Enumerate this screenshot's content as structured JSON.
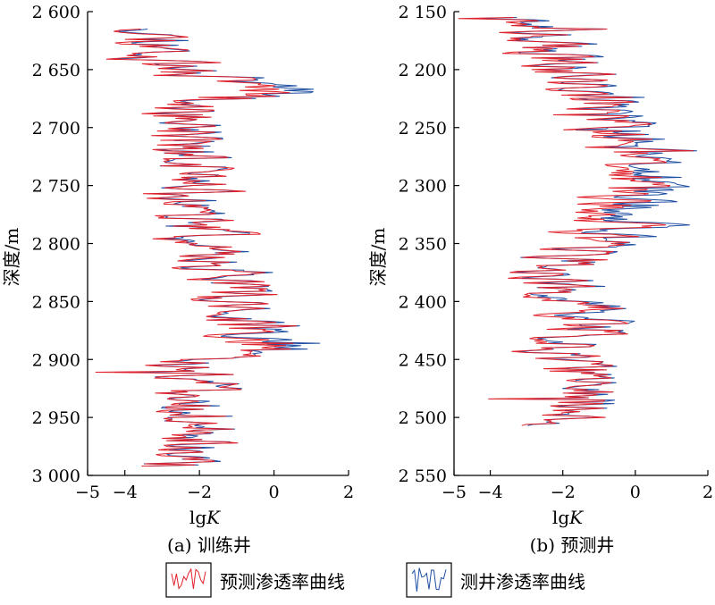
{
  "colors": {
    "predicted": "#e0202a",
    "measured": "#1f4fa3",
    "axis": "#000000"
  },
  "legend": {
    "predicted_label": "预测渗透率曲线",
    "measured_label": "测井渗透率曲线"
  },
  "chart_data": [
    {
      "type": "line",
      "caption": "(a) 训练井",
      "xlabel": "lgK",
      "ylabel": "深度/m",
      "xlim": [
        -5,
        2
      ],
      "ylim": [
        3000,
        2600
      ],
      "y_inverted": true,
      "xticks": [
        -5,
        -4,
        -2,
        0,
        2
      ],
      "yticks": [
        2600,
        2650,
        2700,
        2750,
        2800,
        2850,
        2900,
        2950,
        3000
      ],
      "ytick_labels": [
        "2 600",
        "2 650",
        "2 700",
        "2 750",
        "2 800",
        "2 850",
        "2 900",
        "2 950",
        "3 000"
      ],
      "depth_range": [
        2615,
        2992
      ],
      "series": [
        {
          "name": "预测渗透率曲线",
          "key": "predicted",
          "profile": [
            [
              2615,
              -3.0
            ],
            [
              2630,
              -2.9
            ],
            [
              2645,
              -3.2
            ],
            [
              2655,
              -2.2
            ],
            [
              2662,
              -0.5
            ],
            [
              2668,
              -0.3
            ],
            [
              2675,
              -1.0
            ],
            [
              2680,
              -2.5
            ],
            [
              2700,
              -2.2
            ],
            [
              2720,
              -2.5
            ],
            [
              2740,
              -2.0
            ],
            [
              2760,
              -2.2
            ],
            [
              2780,
              -2.4
            ],
            [
              2790,
              -1.8
            ],
            [
              2800,
              -2.5
            ],
            [
              2815,
              -1.5
            ],
            [
              2830,
              -1.2
            ],
            [
              2845,
              -1.0
            ],
            [
              2860,
              -1.5
            ],
            [
              2875,
              -0.5
            ],
            [
              2885,
              -0.3
            ],
            [
              2895,
              -1.0
            ],
            [
              2905,
              -2.2
            ],
            [
              2920,
              -2.0
            ],
            [
              2935,
              -2.5
            ],
            [
              2950,
              -2.0
            ],
            [
              2965,
              -1.8
            ],
            [
              2978,
              -2.0
            ],
            [
              2992,
              -3.0
            ]
          ]
        },
        {
          "name": "测井渗透率曲线",
          "key": "measured",
          "profile": [
            [
              2615,
              -2.8
            ],
            [
              2630,
              -2.8
            ],
            [
              2645,
              -3.1
            ],
            [
              2655,
              -2.0
            ],
            [
              2662,
              -0.2
            ],
            [
              2668,
              0.6
            ],
            [
              2675,
              -0.8
            ],
            [
              2680,
              -2.4
            ],
            [
              2700,
              -2.2
            ],
            [
              2720,
              -2.4
            ],
            [
              2740,
              -2.0
            ],
            [
              2760,
              -2.1
            ],
            [
              2780,
              -2.3
            ],
            [
              2790,
              -2.0
            ],
            [
              2800,
              -2.4
            ],
            [
              2815,
              -1.4
            ],
            [
              2830,
              -1.1
            ],
            [
              2845,
              -0.9
            ],
            [
              2860,
              -1.4
            ],
            [
              2875,
              -0.2
            ],
            [
              2885,
              0.4
            ],
            [
              2895,
              -0.8
            ],
            [
              2905,
              -2.1
            ],
            [
              2920,
              -2.0
            ],
            [
              2935,
              -2.4
            ],
            [
              2950,
              -2.0
            ],
            [
              2965,
              -1.7
            ],
            [
              2978,
              -1.8
            ],
            [
              2992,
              -2.9
            ]
          ]
        }
      ]
    },
    {
      "type": "line",
      "caption": "(b) 预测井",
      "xlabel": "lgK",
      "ylabel": "深度/m",
      "xlim": [
        -5,
        2
      ],
      "ylim": [
        2550,
        2150
      ],
      "y_inverted": true,
      "xticks": [
        -5,
        -4,
        -2,
        0,
        2
      ],
      "yticks": [
        2150,
        2200,
        2250,
        2300,
        2350,
        2400,
        2450,
        2500,
        2550
      ],
      "ytick_labels": [
        "2 150",
        "2 200",
        "2 250",
        "2 300",
        "2 350",
        "2 400",
        "2 450",
        "2 500",
        "2 550"
      ],
      "depth_range": [
        2155,
        2507
      ],
      "series": [
        {
          "name": "预测渗透率曲线",
          "key": "predicted",
          "profile": [
            [
              2155,
              -2.8
            ],
            [
              2170,
              -2.5
            ],
            [
              2185,
              -2.5
            ],
            [
              2200,
              -1.8
            ],
            [
              2215,
              -1.5
            ],
            [
              2230,
              -1.0
            ],
            [
              2250,
              -0.8
            ],
            [
              2270,
              -0.3
            ],
            [
              2290,
              -0.2
            ],
            [
              2310,
              -0.3
            ],
            [
              2330,
              -0.5
            ],
            [
              2345,
              -1.0
            ],
            [
              2360,
              -2.0
            ],
            [
              2380,
              -2.5
            ],
            [
              2395,
              -2.0
            ],
            [
              2405,
              -1.0
            ],
            [
              2420,
              -1.5
            ],
            [
              2440,
              -2.0
            ],
            [
              2460,
              -2.0
            ],
            [
              2480,
              -1.5
            ],
            [
              2495,
              -1.2
            ],
            [
              2507,
              -2.5
            ]
          ]
        },
        {
          "name": "测井渗透率曲线",
          "key": "measured",
          "profile": [
            [
              2155,
              -2.6
            ],
            [
              2170,
              -2.4
            ],
            [
              2185,
              -2.3
            ],
            [
              2200,
              -1.7
            ],
            [
              2215,
              -1.4
            ],
            [
              2230,
              -0.7
            ],
            [
              2250,
              -0.4
            ],
            [
              2270,
              0.0
            ],
            [
              2290,
              0.3
            ],
            [
              2310,
              0.4
            ],
            [
              2330,
              0.2
            ],
            [
              2345,
              -0.5
            ],
            [
              2360,
              -2.0
            ],
            [
              2380,
              -2.4
            ],
            [
              2395,
              -1.8
            ],
            [
              2405,
              -0.6
            ],
            [
              2420,
              -1.2
            ],
            [
              2440,
              -1.9
            ],
            [
              2460,
              -1.9
            ],
            [
              2480,
              -1.4
            ],
            [
              2495,
              -1.1
            ],
            [
              2507,
              -2.4
            ]
          ]
        }
      ]
    }
  ]
}
